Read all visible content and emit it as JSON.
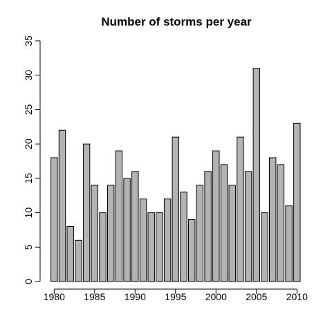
{
  "chart_data": {
    "type": "bar",
    "title": "Number of storms per year",
    "xlabel": "",
    "ylabel": "",
    "categories": [
      1980,
      1981,
      1982,
      1983,
      1984,
      1985,
      1986,
      1987,
      1988,
      1989,
      1990,
      1991,
      1992,
      1993,
      1994,
      1995,
      1996,
      1997,
      1998,
      1999,
      2000,
      2001,
      2002,
      2003,
      2004,
      2005,
      2006,
      2007,
      2008,
      2009,
      2010
    ],
    "values": [
      18,
      22,
      8,
      6,
      20,
      14,
      10,
      14,
      19,
      15,
      16,
      12,
      10,
      10,
      12,
      21,
      13,
      9,
      14,
      16,
      19,
      17,
      14,
      21,
      16,
      31,
      10,
      18,
      17,
      11,
      23
    ],
    "ylim": [
      0,
      35
    ],
    "yticks": [
      0,
      5,
      10,
      15,
      20,
      25,
      30,
      35
    ],
    "xtick_labels": [
      "1980",
      "1985",
      "1990",
      "1995",
      "2000",
      "2005",
      "2010"
    ],
    "bar_color": "#b3b3b3",
    "grid": false,
    "legend": "none"
  }
}
